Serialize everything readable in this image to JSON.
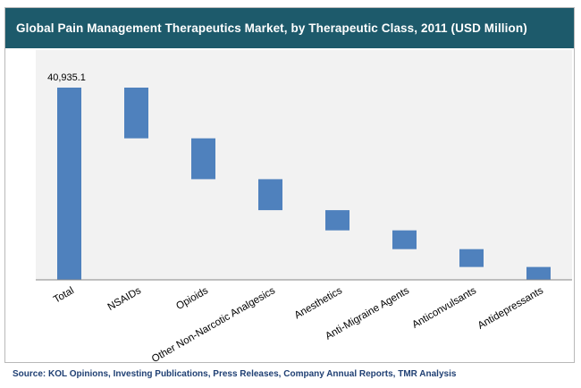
{
  "chart_data": {
    "type": "waterfall",
    "title": "Global Pain Management Therapeutics Market, by Therapeutic Class, 2011 (USD Million)",
    "categories": [
      "Total",
      "NSAIDs",
      "Opioids",
      "Other Non-Narcotic Analgesics",
      "Anesthetics",
      "Anti-Migraine Agents",
      "Anticonvulsants",
      "Antidepressants"
    ],
    "total_label": "40,935.1",
    "total": 40935.1,
    "segments": [
      {
        "category": "NSAIDs",
        "value": 10800
      },
      {
        "category": "Opioids",
        "value": 8700
      },
      {
        "category": "Other Non-Narcotic Analgesics",
        "value": 6600
      },
      {
        "category": "Anesthetics",
        "value": 4300
      },
      {
        "category": "Anti-Migraine Agents",
        "value": 4000
      },
      {
        "category": "Anticonvulsants",
        "value": 3800
      },
      {
        "category": "Antidepressants",
        "value": 2735.1
      }
    ],
    "bar_color": "#4f81bd",
    "xlabel": "",
    "ylabel": "",
    "grid": false,
    "legend": "none"
  },
  "source": "Source:  KOL Opinions, Investing Publications, Press Releases, Company Annual Reports, TMR Analysis"
}
